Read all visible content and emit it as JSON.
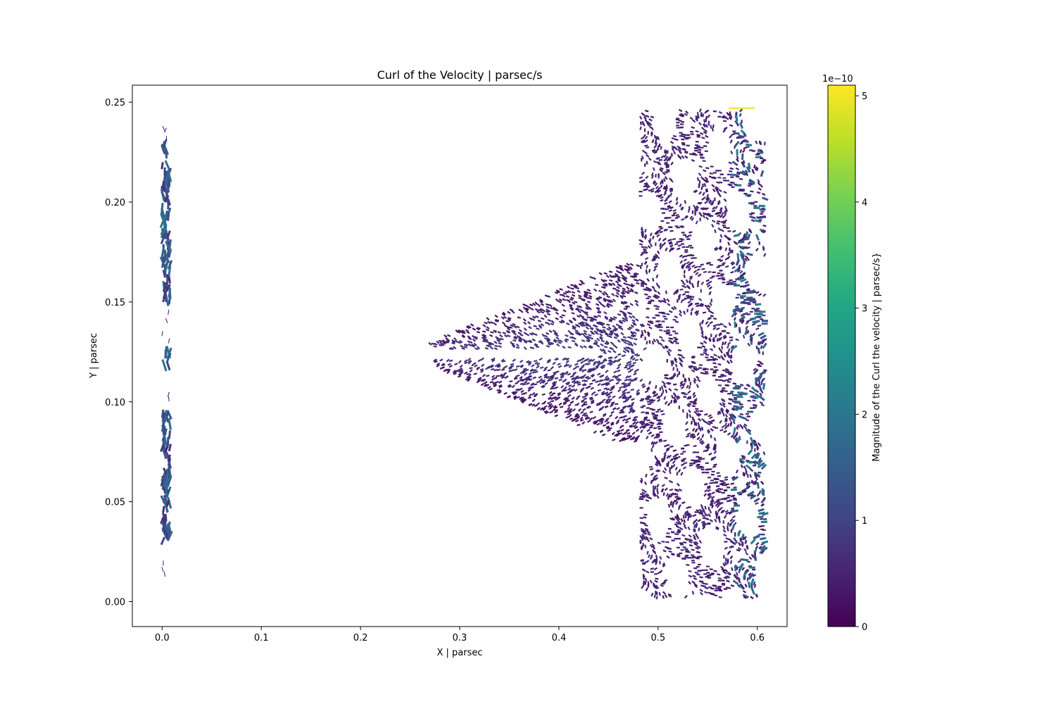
{
  "chart_data": {
    "type": "quiver",
    "title": "Curl of the Velocity | parsec/s",
    "xlabel": "X | parsec",
    "ylabel": "Y | parsec",
    "xlim": [
      -0.03,
      0.63
    ],
    "ylim": [
      -0.0125,
      0.2585
    ],
    "xticks": [
      0.0,
      0.1,
      0.2,
      0.3,
      0.4,
      0.5,
      0.6
    ],
    "xtick_labels": [
      "0.0",
      "0.1",
      "0.2",
      "0.3",
      "0.4",
      "0.5",
      "0.6"
    ],
    "yticks": [
      0.0,
      0.05,
      0.1,
      0.15,
      0.2,
      0.25
    ],
    "ytick_labels": [
      "0.00",
      "0.05",
      "0.10",
      "0.15",
      "0.20",
      "0.25"
    ],
    "grid": false,
    "colormap": "viridis",
    "colorbar": {
      "label": "Magnitude of the Curl the velocity | parsec/s}",
      "range": [
        0,
        5.1
      ],
      "offset_text": "1e−10",
      "ticks": [
        0,
        1,
        2,
        3,
        4,
        5
      ],
      "tick_labels": [
        "0",
        "1",
        "2",
        "3",
        "4",
        "5"
      ]
    },
    "dense_regions": [
      {
        "region": "left strip",
        "x": [
          0.0,
          0.01
        ],
        "y": [
          0.01,
          0.24
        ],
        "magnitude": [
          0.5,
          2.5
        ]
      },
      {
        "region": "central plume",
        "x": [
          0.27,
          0.48
        ],
        "y": [
          0.08,
          0.17
        ],
        "magnitude": [
          0.2,
          1.2
        ]
      },
      {
        "region": "right turbulent zone",
        "x": [
          0.48,
          0.61
        ],
        "y": [
          0.0,
          0.247
        ],
        "magnitude": [
          0.3,
          2.5
        ]
      }
    ],
    "peak": {
      "x": 0.585,
      "y": 0.247,
      "magnitude": 5.0
    }
  }
}
